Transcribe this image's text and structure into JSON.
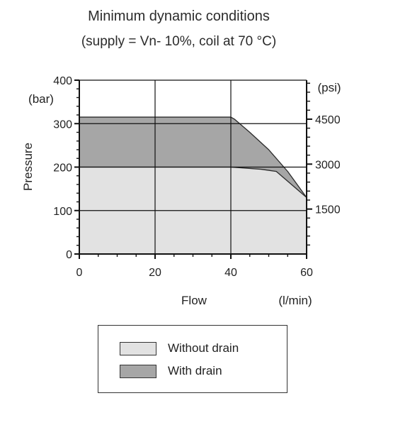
{
  "chart_data": {
    "type": "area",
    "title": "Minimum dynamic conditions",
    "subtitle": "(supply = Vn- 10%, coil at 70 °C)",
    "xlabel": "Flow",
    "xunit": "(l/min)",
    "ylabel": "Pressure",
    "yunit": "(bar)",
    "y2unit": "(psi)",
    "xlim": [
      0,
      60
    ],
    "ylim": [
      0,
      400
    ],
    "x_ticks": [
      "0",
      "20",
      "40",
      "60"
    ],
    "y_ticks": [
      "0",
      "100",
      "200",
      "300",
      "400"
    ],
    "y2_ticks": [
      "1500",
      "3000",
      "4500"
    ],
    "y2_tick_positions_bar": [
      103.4,
      206.8,
      310.3
    ],
    "grid": true,
    "series": [
      {
        "name": "Without drain",
        "color": "#e2e2e2",
        "x": [
          0,
          40,
          48,
          52,
          60
        ],
        "y": [
          200,
          200,
          195,
          190,
          130
        ]
      },
      {
        "name": "With drain",
        "color": "#a6a6a6",
        "x": [
          0,
          40,
          41,
          45,
          50,
          55,
          60
        ],
        "y": [
          315,
          315,
          310,
          280,
          240,
          190,
          130
        ]
      }
    ],
    "legend": "below"
  }
}
